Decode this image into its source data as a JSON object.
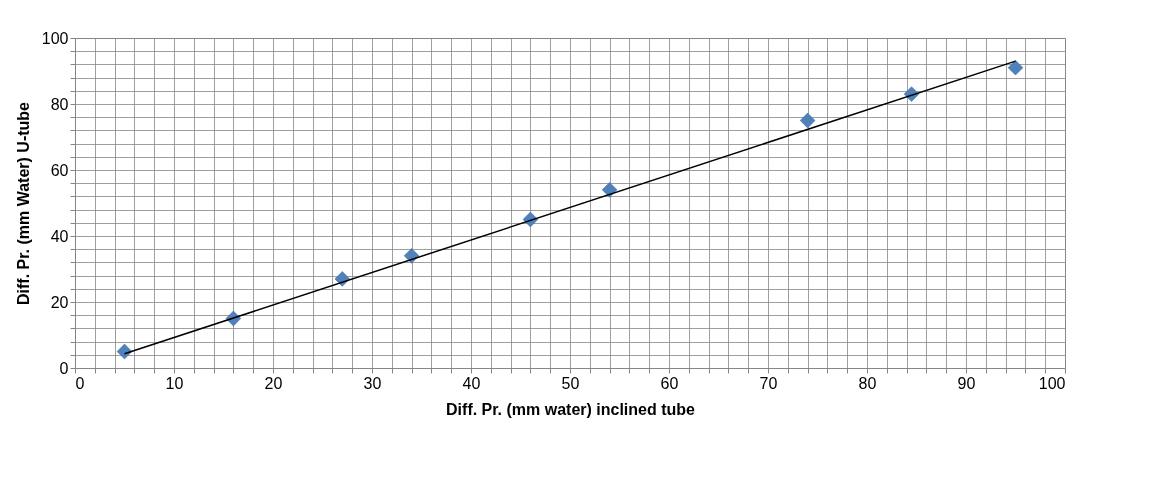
{
  "chart_data": {
    "type": "scatter",
    "xlabel": "Diff. Pr. (mm water) inclined tube",
    "ylabel": "Diff. Pr. (mm Water) U-tube",
    "xlim": [
      0,
      100
    ],
    "ylim": [
      0,
      100
    ],
    "xticks": [
      0,
      {
        "value": 2,
        "label": null
      },
      {
        "value": 4,
        "label": null
      },
      {
        "value": 6,
        "label": null
      },
      {
        "value": 8,
        "label": null
      },
      10,
      {
        "value": 12,
        "label": null
      },
      {
        "value": 14,
        "label": null
      },
      {
        "value": 16,
        "label": null
      },
      {
        "value": 18,
        "label": null
      },
      20,
      {
        "value": 22,
        "label": null
      },
      {
        "value": 24,
        "label": null
      },
      {
        "value": 26,
        "label": null
      },
      {
        "value": 28,
        "label": null
      },
      30,
      {
        "value": 32,
        "label": null
      },
      {
        "value": 34,
        "label": null
      },
      {
        "value": 36,
        "label": null
      },
      {
        "value": 38,
        "label": null
      },
      40,
      {
        "value": 42,
        "label": null
      },
      {
        "value": 44,
        "label": null
      },
      {
        "value": 46,
        "label": null
      },
      {
        "value": 48,
        "label": null
      },
      50,
      {
        "value": 52,
        "label": null
      },
      {
        "value": 54,
        "label": null
      },
      {
        "value": 56,
        "label": null
      },
      {
        "value": 58,
        "label": null
      },
      60,
      {
        "value": 62,
        "label": null
      },
      {
        "value": 64,
        "label": null
      },
      {
        "value": 66,
        "label": null
      },
      {
        "value": 68,
        "label": null
      },
      70,
      {
        "value": 72,
        "label": null
      },
      {
        "value": 74,
        "label": null
      },
      {
        "value": 76,
        "label": null
      },
      {
        "value": 78,
        "label": null
      },
      80,
      {
        "value": 82,
        "label": null
      },
      {
        "value": 84,
        "label": null
      },
      {
        "value": 86,
        "label": null
      },
      {
        "value": 88,
        "label": null
      },
      90,
      {
        "value": 92,
        "label": null
      },
      {
        "value": 94,
        "label": null
      },
      {
        "value": 96,
        "label": null
      },
      {
        "value": 98,
        "label": null
      },
      100
    ],
    "yticks": [
      0,
      {
        "value": 4,
        "label": null
      },
      {
        "value": 8,
        "label": null
      },
      {
        "value": 12,
        "label": null
      },
      {
        "value": 16,
        "label": null
      },
      20,
      {
        "value": 24,
        "label": null
      },
      {
        "value": 28,
        "label": null
      },
      {
        "value": 32,
        "label": null
      },
      {
        "value": 36,
        "label": null
      },
      40,
      {
        "value": 44,
        "label": null
      },
      {
        "value": 48,
        "label": null
      },
      {
        "value": 52,
        "label": null
      },
      {
        "value": 56,
        "label": null
      },
      60,
      {
        "value": 64,
        "label": null
      },
      {
        "value": 68,
        "label": null
      },
      {
        "value": 72,
        "label": null
      },
      {
        "value": 76,
        "label": null
      },
      80,
      {
        "value": 84,
        "label": null
      },
      {
        "value": 88,
        "label": null
      },
      {
        "value": 92,
        "label": null
      },
      {
        "value": 96,
        "label": null
      },
      100
    ],
    "grid": true,
    "legend": false,
    "series": [
      {
        "marker": "diamond",
        "color": "#4f81bd",
        "x": [
          5,
          16,
          27,
          34,
          46,
          54,
          74,
          84.5,
          95
        ],
        "values": [
          5,
          15,
          27,
          34,
          45,
          54,
          75,
          83,
          91
        ]
      },
      {
        "type": "line",
        "color": "#000000",
        "line_style": "solid",
        "marker": "none",
        "x": [
          5,
          95
        ],
        "values": [
          4.3,
          93
        ]
      }
    ]
  }
}
